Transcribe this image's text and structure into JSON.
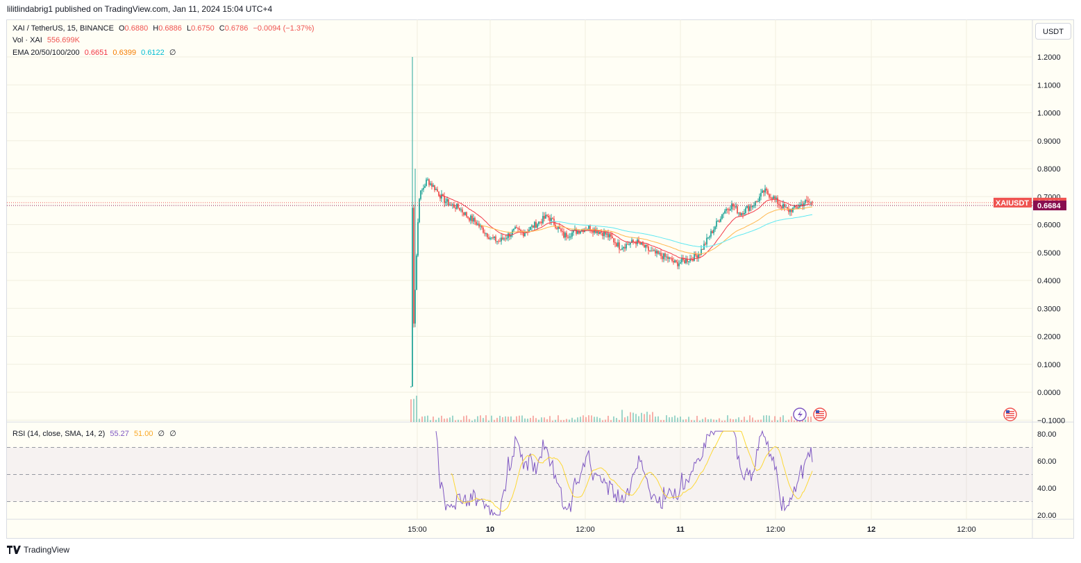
{
  "header": {
    "published": "lilitlindabrig1 published on TradingView.com, Jan 11, 2024 15:04 UTC+4"
  },
  "legend": {
    "symbol": "XAI / TetherUS, 15, BINANCE",
    "o_label": "O",
    "o_value": "0.6880",
    "h_label": "H",
    "h_value": "0.6886",
    "l_label": "L",
    "l_value": "0.6750",
    "c_label": "C",
    "c_value": "0.6786",
    "change": "−0.0094 (−1.37%)",
    "vol_label": "Vol · XAI",
    "vol_value": "556.699K",
    "ema_label": "EMA 20/50/100/200",
    "ema20": "0.6651",
    "ema50": "0.6399",
    "ema100": "0.6122",
    "ema200": "∅"
  },
  "rsi_legend": {
    "label": "RSI (14, close, SMA, 14, 2)",
    "rsi": "55.27",
    "sma": "51.00",
    "v3": "∅",
    "v4": "∅"
  },
  "currency_button": "USDT",
  "price_tags": {
    "symbol": "XAIUSDT",
    "last": "0.6786",
    "ema": "0.6684"
  },
  "footer": {
    "brand": "TradingView"
  },
  "colors": {
    "up": "#26a69a",
    "down": "#ef5350",
    "ema20": "#f23645",
    "ema50": "#ffb74d",
    "ema100": "#5ee8f2",
    "rsi": "#7e57c2",
    "rsi_sma": "#fdd835"
  },
  "chart_data": [
    {
      "type": "candlestick",
      "title": "XAI / TetherUS, 15, BINANCE",
      "x_ticks": [
        "15:00",
        "10",
        "12:00",
        "11",
        "12:00",
        "12",
        "12:00"
      ],
      "y_ticks": [
        "1.2000",
        "1.1000",
        "1.0000",
        "0.9000",
        "0.8000",
        "0.7000",
        "0.6000",
        "0.5000",
        "0.4000",
        "0.3000",
        "0.2000",
        "0.1000",
        "0.0000",
        "−0.1000"
      ],
      "ylim": [
        -0.1,
        1.26
      ],
      "grid": true,
      "approx_closes": [
        0.02,
        0.7,
        0.76,
        0.73,
        0.69,
        0.67,
        0.66,
        0.63,
        0.61,
        0.58,
        0.55,
        0.54,
        0.56,
        0.58,
        0.57,
        0.59,
        0.61,
        0.63,
        0.6,
        0.56,
        0.57,
        0.58,
        0.59,
        0.58,
        0.57,
        0.55,
        0.52,
        0.53,
        0.54,
        0.52,
        0.5,
        0.49,
        0.48,
        0.46,
        0.47,
        0.48,
        0.5,
        0.55,
        0.6,
        0.65,
        0.67,
        0.64,
        0.66,
        0.68,
        0.72,
        0.7,
        0.67,
        0.65,
        0.66,
        0.68,
        0.6786
      ],
      "ema": [
        {
          "name": "EMA 20",
          "last": 0.6651
        },
        {
          "name": "EMA 50",
          "last": 0.6399
        },
        {
          "name": "EMA 100",
          "last": 0.6122
        }
      ],
      "last_price": 0.6786,
      "ema_tag": 0.6684
    },
    {
      "type": "line",
      "title": "RSI (14, close, SMA, 14, 2)",
      "y_ticks": [
        "80.00",
        "60.00",
        "40.00",
        "20.00"
      ],
      "ylim": [
        15,
        85
      ],
      "bands": [
        70,
        50,
        30
      ],
      "series": [
        {
          "name": "RSI",
          "last": 55.27
        },
        {
          "name": "SMA",
          "last": 51.0
        }
      ]
    }
  ]
}
